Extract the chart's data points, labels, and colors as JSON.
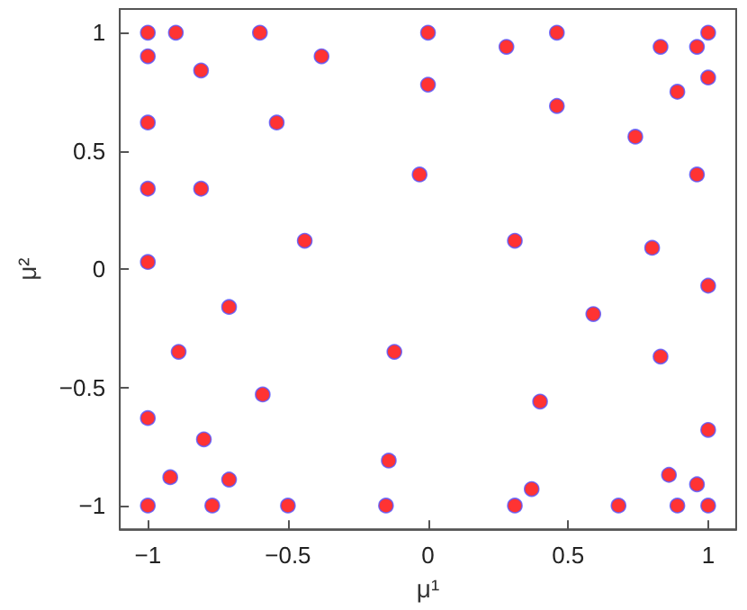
{
  "chart_data": {
    "type": "scatter",
    "xlabel": "μ¹",
    "ylabel": "μ²",
    "x": [
      -1,
      -0.9,
      -0.6,
      -1,
      -0.38,
      -0.81,
      -1,
      -0.54,
      -1,
      -0.81,
      -0.44,
      -1,
      0,
      0.28,
      0.46,
      0.83,
      0.96,
      1,
      0,
      1,
      0.89,
      0.46,
      0.74,
      -0.03,
      0.96,
      0.31,
      0.8,
      1,
      0.59,
      -0.12,
      0.83,
      0.4,
      1,
      -0.14,
      0.86,
      0.96,
      0.37,
      0.31,
      0.68,
      0.89,
      1,
      -0.71,
      -0.89,
      -0.59,
      -1,
      -0.8,
      -0.92,
      -0.71,
      -1,
      -0.77,
      -0.5,
      -0.15
    ],
    "series": [
      {
        "color": "#ff0000",
        "values": [
          1,
          1,
          1,
          0.9,
          0.9,
          0.84,
          0.62,
          0.62,
          0.34,
          0.34,
          0.12,
          0.03,
          1,
          0.94,
          1,
          0.94,
          0.94,
          1,
          0.78,
          0.81,
          0.75,
          0.69,
          0.56,
          0.4,
          0.4,
          0.12,
          0.09,
          -0.07,
          -0.19,
          -0.35,
          -0.37,
          -0.56,
          -0.68,
          -0.81,
          -0.87,
          -0.91,
          -0.93,
          -1,
          -1,
          -1,
          -1,
          -0.16,
          -0.35,
          -0.53,
          -0.63,
          -0.72,
          -0.88,
          -0.89,
          -1,
          -1,
          -1,
          -1
        ]
      }
    ],
    "xlim": [
      -1.1,
      1.1
    ],
    "ylim": [
      -1.1,
      1.1
    ],
    "xticks": [
      -1,
      -0.5,
      0,
      0.5,
      1
    ],
    "yticks": [
      -1,
      -0.5,
      0,
      0.5,
      1
    ],
    "grid": false,
    "marker": "circle"
  }
}
